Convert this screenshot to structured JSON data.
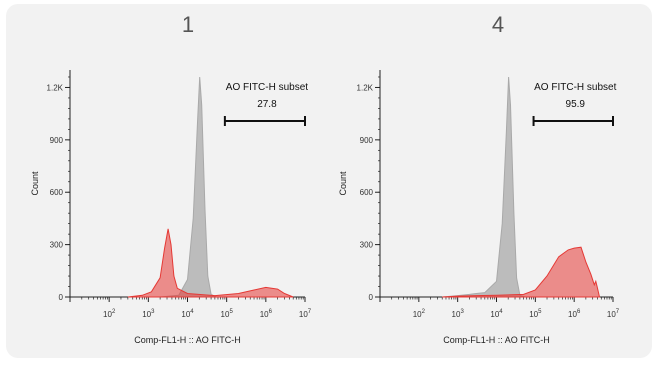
{
  "chart_data": [
    {
      "type": "area",
      "title": "1",
      "xlabel": "Comp-FL1-H :: AO FITC-H",
      "ylabel": "Count",
      "x_scale": "log",
      "xlim": [
        10,
        10000000
      ],
      "ylim": [
        0,
        1300
      ],
      "x_ticks": [
        {
          "base": "10",
          "exp": "2"
        },
        {
          "base": "10",
          "exp": "3"
        },
        {
          "base": "10",
          "exp": "4"
        },
        {
          "base": "10",
          "exp": "5"
        },
        {
          "base": "10",
          "exp": "6"
        },
        {
          "base": "10",
          "exp": "7"
        }
      ],
      "y_ticks": [
        {
          "value": 0,
          "label": "0"
        },
        {
          "value": 300,
          "label": "300"
        },
        {
          "value": 600,
          "label": "600"
        },
        {
          "value": 900,
          "label": "900"
        },
        {
          "value": 1200,
          "label": "1.2K"
        }
      ],
      "gate": {
        "name": "AO FITC-H subset",
        "value": "27.8",
        "x_range": [
          90000,
          10000000
        ]
      },
      "series": [
        {
          "color": "#a9a9a9",
          "points": [
            [
              2000,
              0
            ],
            [
              6000,
              10
            ],
            [
              10000,
              100
            ],
            [
              14000,
              450
            ],
            [
              18000,
              1000
            ],
            [
              20500,
              1260
            ],
            [
              23000,
              1100
            ],
            [
              28000,
              500
            ],
            [
              33000,
              120
            ],
            [
              40000,
              15
            ],
            [
              55000,
              0
            ]
          ]
        },
        {
          "color": "#e53935",
          "points": [
            [
              300,
              0
            ],
            [
              700,
              10
            ],
            [
              1200,
              30
            ],
            [
              2000,
              110
            ],
            [
              2600,
              280
            ],
            [
              3200,
              390
            ],
            [
              3800,
              300
            ],
            [
              4500,
              120
            ],
            [
              5500,
              50
            ],
            [
              10000,
              20
            ],
            [
              50000,
              8
            ],
            [
              200000,
              20
            ],
            [
              500000,
              40
            ],
            [
              1000000,
              55
            ],
            [
              2000000,
              45
            ],
            [
              3000000,
              20
            ],
            [
              5000000,
              0
            ]
          ]
        }
      ]
    },
    {
      "type": "area",
      "title": "4",
      "xlabel": "Comp-FL1-H :: AO FITC-H",
      "ylabel": "Count",
      "x_scale": "log",
      "xlim": [
        10,
        10000000
      ],
      "ylim": [
        0,
        1300
      ],
      "x_ticks": [
        {
          "base": "10",
          "exp": "2"
        },
        {
          "base": "10",
          "exp": "3"
        },
        {
          "base": "10",
          "exp": "4"
        },
        {
          "base": "10",
          "exp": "5"
        },
        {
          "base": "10",
          "exp": "6"
        },
        {
          "base": "10",
          "exp": "7"
        }
      ],
      "y_ticks": [
        {
          "value": 0,
          "label": "0"
        },
        {
          "value": 300,
          "label": "300"
        },
        {
          "value": 600,
          "label": "600"
        },
        {
          "value": 900,
          "label": "900"
        },
        {
          "value": 1200,
          "label": "1.2K"
        }
      ],
      "gate": {
        "name": "AO FITC-H subset",
        "value": "95.9",
        "x_range": [
          90000,
          10000000
        ]
      },
      "series": [
        {
          "color": "#a9a9a9",
          "points": [
            [
              400,
              0
            ],
            [
              1000,
              8
            ],
            [
              2000,
              15
            ],
            [
              3000,
              20
            ],
            [
              5000,
              25
            ],
            [
              10000,
              90
            ],
            [
              14000,
              420
            ],
            [
              18000,
              950
            ],
            [
              20500,
              1260
            ],
            [
              23000,
              1100
            ],
            [
              28000,
              480
            ],
            [
              33000,
              110
            ],
            [
              40000,
              10
            ],
            [
              55000,
              0
            ]
          ]
        },
        {
          "color": "#e53935",
          "points": [
            [
              400,
              0
            ],
            [
              1000,
              5
            ],
            [
              3000,
              8
            ],
            [
              10000,
              10
            ],
            [
              50000,
              15
            ],
            [
              100000,
              40
            ],
            [
              200000,
              120
            ],
            [
              400000,
              230
            ],
            [
              700000,
              270
            ],
            [
              1000000,
              280
            ],
            [
              1500000,
              285
            ],
            [
              2000000,
              200
            ],
            [
              2700000,
              130
            ],
            [
              3300000,
              70
            ],
            [
              3600000,
              90
            ],
            [
              3900000,
              60
            ],
            [
              4500000,
              0
            ]
          ]
        }
      ]
    }
  ]
}
